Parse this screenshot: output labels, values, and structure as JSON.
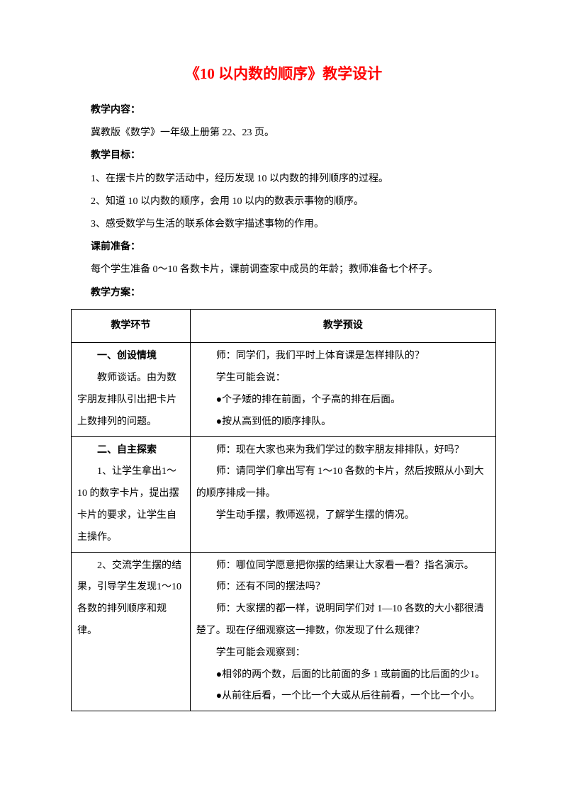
{
  "title": "《10 以内数的顺序》教学设计",
  "sections": {
    "s1": {
      "heading": "教学内容：",
      "p1": "冀教版《数学》一年级上册第 22、23 页。"
    },
    "s2": {
      "heading": "教学目标：",
      "p1": "1、在摆卡片的数学活动中，经历发现 10 以内数的排列顺序的过程。",
      "p2": "2、知道 10 以内数的顺序，会用 10 以内的数表示事物的顺序。",
      "p3": "3、感受数学与生活的联系体会数字描述事物的作用。"
    },
    "s3": {
      "heading": "课前准备：",
      "p1": "每个学生准备 0～10 各数卡片，课前调查家中成员的年龄；教师准备七个杯子。"
    },
    "s4": {
      "heading": "教学方案："
    }
  },
  "table": {
    "header": {
      "col1": "教学环节",
      "col2": "教学预设"
    },
    "rows": [
      {
        "left": {
          "heading": "一、创设情境",
          "body": "教师谈话。由为数字朋友排队引出把卡片上数排列的问题。"
        },
        "right": {
          "l1": "师：同学们，我们平时上体育课是怎样排队的？",
          "l2": "学生可能会说：",
          "l3": "●个子矮的排在前面，个子高的排在后面。",
          "l4": "●按从高到低的顺序排队。"
        }
      },
      {
        "left": {
          "heading": "二、自主探索",
          "body": "1、让学生拿出1～10 的数字卡片，提出摆卡片的要求，让学生自主操作。"
        },
        "right": {
          "l1": "师：现在大家也来为我们学过的数字朋友排排队，好吗？",
          "l2": "师：请同学们拿出写有 1～10 各数的卡片，然后按照从小到大的顺序排成一排。",
          "l3": "学生动手摆，教师巡视，了解学生摆的情况。"
        }
      },
      {
        "left": {
          "body": "2、交流学生摆的结果，引导学生发现1～10 各数的排列顺序和规律。"
        },
        "right": {
          "l1": "师：哪位同学愿意把你摆的结果让大家看一看？指名演示。",
          "l2": "师：还有不同的摆法吗？",
          "l3": "师：大家摆的都一样，说明同学们对 1—10 各数的大小都很清楚了。现在仔细观察这一排数，你发现了什么规律？",
          "l4": "学生可能会观察到：",
          "l5": "●相邻的两个数，后面的比前面的多 1 或前面的比后面的少1。",
          "l6": "●从前往后看，一个比一个大或从后往前看，一个比一个小。"
        }
      }
    ]
  }
}
